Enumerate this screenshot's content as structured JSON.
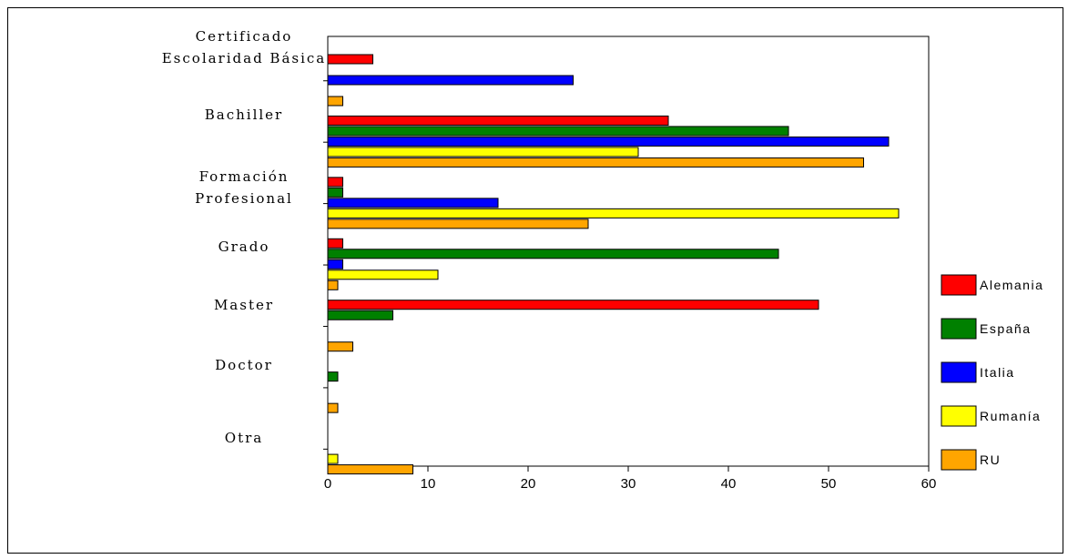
{
  "chart_data": {
    "type": "bar",
    "orientation": "horizontal",
    "categories": [
      [
        "Certificado",
        "Escolaridad Básica"
      ],
      [
        "Bachiller"
      ],
      [
        "Formación",
        "Profesional"
      ],
      [
        "Grado"
      ],
      [
        "Master"
      ],
      [
        "Doctor"
      ],
      [
        "Otra"
      ]
    ],
    "series": [
      {
        "name": "Alemania",
        "color": "#ff0000",
        "values": [
          4.5,
          34,
          1.5,
          1.5,
          49,
          0,
          0
        ]
      },
      {
        "name": "España",
        "color": "#008000",
        "values": [
          0,
          46,
          1.5,
          45,
          6.5,
          1,
          0
        ]
      },
      {
        "name": "Italia",
        "color": "#0000ff",
        "values": [
          24.5,
          56,
          17,
          1.5,
          0,
          0,
          0
        ]
      },
      {
        "name": "Rumanía",
        "color": "#ffff00",
        "values": [
          0,
          31,
          57,
          11,
          0,
          0,
          1
        ]
      },
      {
        "name": "RU",
        "color": "#ffa500",
        "values": [
          1.5,
          53.5,
          26,
          1,
          2.5,
          1,
          8.5
        ]
      }
    ],
    "xlim": [
      0,
      60
    ],
    "xticks": [
      0,
      10,
      20,
      30,
      40,
      50,
      60
    ],
    "grid": false,
    "legend_position": "right",
    "title": "",
    "xlabel": "",
    "ylabel": ""
  }
}
